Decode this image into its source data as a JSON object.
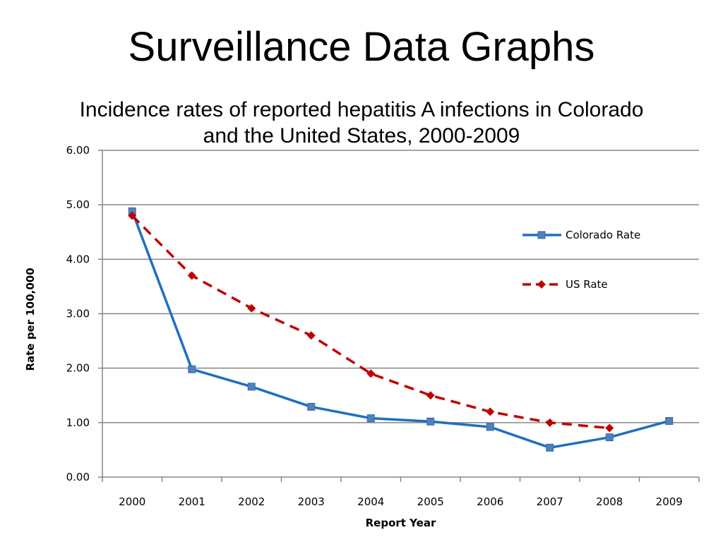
{
  "slide": {
    "title": "Surveillance Data Graphs"
  },
  "chart_data": {
    "type": "line",
    "title_line1": "Incidence rates of reported hepatitis A infections in Colorado",
    "title_line2": "and the United States, 2000-2009",
    "xlabel": "Report Year",
    "ylabel": "Rate per 100,000",
    "categories": [
      "2000",
      "2001",
      "2002",
      "2003",
      "2004",
      "2005",
      "2006",
      "2007",
      "2008",
      "2009"
    ],
    "ylim": [
      0,
      6
    ],
    "yticks": [
      "0.00",
      "1.00",
      "2.00",
      "3.00",
      "4.00",
      "5.00",
      "6.00"
    ],
    "grid": true,
    "legend_position": "right",
    "series": [
      {
        "name": "Colorado Rate",
        "color": "#1f6fc0",
        "marker": "square",
        "dashed": false,
        "values": [
          4.88,
          1.98,
          1.66,
          1.29,
          1.08,
          1.02,
          0.92,
          0.54,
          0.73,
          1.03
        ]
      },
      {
        "name": "US Rate",
        "color": "#c00000",
        "marker": "diamond",
        "dashed": true,
        "values": [
          4.8,
          3.7,
          3.1,
          2.6,
          1.9,
          1.5,
          1.2,
          1.0,
          0.9,
          null
        ]
      }
    ]
  }
}
